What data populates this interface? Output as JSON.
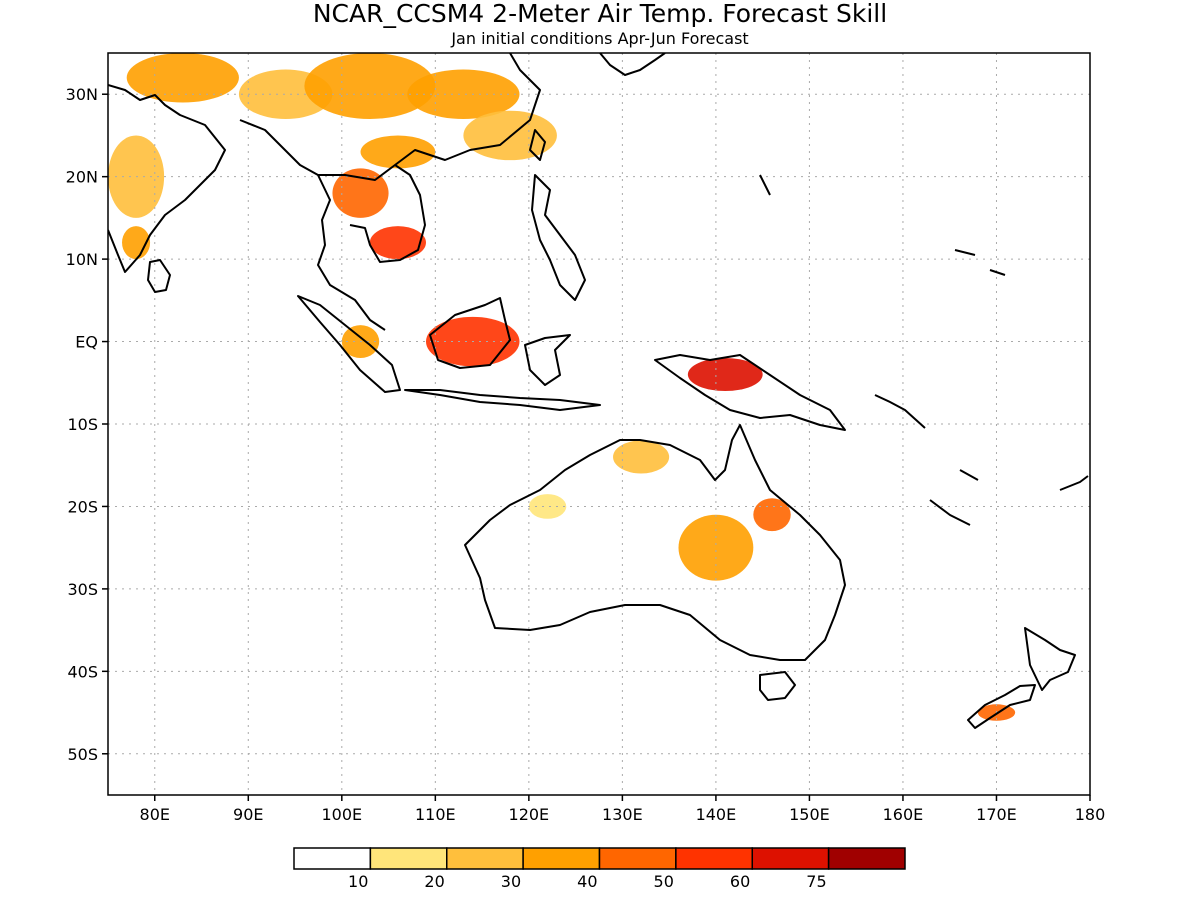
{
  "title": "NCAR_CCSM4 2-Meter Air Temp. Forecast Skill",
  "subtitle": "Jan initial conditions  Apr-Jun Forecast",
  "map": {
    "lon_range": [
      75,
      180
    ],
    "lat_range": [
      -55,
      35
    ],
    "lat_ticks": [
      {
        "v": 30,
        "label": "30N"
      },
      {
        "v": 20,
        "label": "20N"
      },
      {
        "v": 10,
        "label": "10N"
      },
      {
        "v": 0,
        "label": "EQ"
      },
      {
        "v": -10,
        "label": "10S"
      },
      {
        "v": -20,
        "label": "20S"
      },
      {
        "v": -30,
        "label": "30S"
      },
      {
        "v": -40,
        "label": "40S"
      },
      {
        "v": -50,
        "label": "50S"
      }
    ],
    "lon_ticks": [
      {
        "v": 80,
        "label": "80E"
      },
      {
        "v": 90,
        "label": "90E"
      },
      {
        "v": 100,
        "label": "100E"
      },
      {
        "v": 110,
        "label": "110E"
      },
      {
        "v": 120,
        "label": "120E"
      },
      {
        "v": 130,
        "label": "130E"
      },
      {
        "v": 140,
        "label": "140E"
      },
      {
        "v": 150,
        "label": "150E"
      },
      {
        "v": 160,
        "label": "160E"
      },
      {
        "v": 170,
        "label": "170E"
      },
      {
        "v": 180,
        "label": "180"
      }
    ],
    "grid": "dotted"
  },
  "colorbar": {
    "colors": [
      "#ffffff",
      "#ffe57a",
      "#ffbf3c",
      "#ffa000",
      "#ff6600",
      "#ff3300",
      "#dd1100",
      "#a00000"
    ],
    "labels": [
      "10",
      "20",
      "30",
      "40",
      "50",
      "60",
      "75"
    ]
  },
  "skill_regions": [
    {
      "lon": 83,
      "lat": 32,
      "r": [
        6,
        3
      ],
      "level": 3
    },
    {
      "lon": 94,
      "lat": 30,
      "r": [
        5,
        3
      ],
      "level": 2
    },
    {
      "lon": 103,
      "lat": 31,
      "r": [
        7,
        4
      ],
      "level": 3
    },
    {
      "lon": 113,
      "lat": 30,
      "r": [
        6,
        3
      ],
      "level": 3
    },
    {
      "lon": 118,
      "lat": 25,
      "r": [
        5,
        3
      ],
      "level": 2
    },
    {
      "lon": 106,
      "lat": 23,
      "r": [
        4,
        2
      ],
      "level": 3
    },
    {
      "lon": 78,
      "lat": 20,
      "r": [
        3,
        5
      ],
      "level": 2
    },
    {
      "lon": 78,
      "lat": 12,
      "r": [
        1.5,
        2
      ],
      "level": 3
    },
    {
      "lon": 102,
      "lat": 18,
      "r": [
        3,
        3
      ],
      "level": 4
    },
    {
      "lon": 106,
      "lat": 12,
      "r": [
        3,
        2
      ],
      "level": 5
    },
    {
      "lon": 114,
      "lat": 0,
      "r": [
        5,
        3
      ],
      "level": 5
    },
    {
      "lon": 102,
      "lat": 0,
      "r": [
        2,
        2
      ],
      "level": 3
    },
    {
      "lon": 141,
      "lat": -4,
      "r": [
        4,
        2
      ],
      "level": 6
    },
    {
      "lon": 132,
      "lat": -14,
      "r": [
        3,
        2
      ],
      "level": 2
    },
    {
      "lon": 140,
      "lat": -25,
      "r": [
        4,
        4
      ],
      "level": 3
    },
    {
      "lon": 146,
      "lat": -21,
      "r": [
        2,
        2
      ],
      "level": 4
    },
    {
      "lon": 122,
      "lat": -20,
      "r": [
        2,
        1.5
      ],
      "level": 1
    },
    {
      "lon": 170,
      "lat": -45,
      "r": [
        2,
        1
      ],
      "level": 4
    }
  ]
}
